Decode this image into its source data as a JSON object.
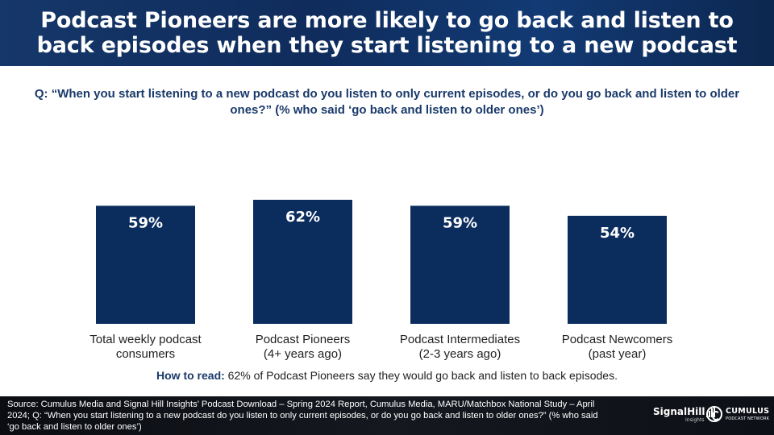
{
  "header": {
    "title": "Podcast Pioneers are more likely to go back and listen to back episodes when they start listening to a new podcast"
  },
  "question": "Q: “When you start listening to a new podcast do you listen to only current episodes, or do you go back and listen to older ones?” (% who said ‘go back and listen to older ones’)",
  "chart_data": {
    "type": "bar",
    "categories": [
      [
        "Total weekly podcast",
        "consumers"
      ],
      [
        "Podcast Pioneers",
        "(4+ years ago)"
      ],
      [
        "Podcast Intermediates",
        "(2-3 years ago)"
      ],
      [
        "Podcast Newcomers",
        "(past year)"
      ]
    ],
    "values": [
      59,
      62,
      59,
      54
    ],
    "value_labels": [
      "59%",
      "62%",
      "59%",
      "54%"
    ],
    "title": "",
    "xlabel": "",
    "ylabel": "",
    "ylim": [
      0,
      100
    ],
    "grid": false,
    "bar_color": "#0b2d5e"
  },
  "how_to_read": {
    "label": "How to read:",
    "text": " 62% of Podcast Pioneers say they would go back and listen to back episodes."
  },
  "footer": {
    "source": "Source: Cumulus Media and Signal Hill Insights’ Podcast Download – Spring 2024 Report, Cumulus Media, MARU/Matchbox National Study – April 2024; Q: “When you start listening to a new podcast do you listen to only current episodes, or do you go back and listen to older ones?” (% who said ‘go back and listen to older ones’)",
    "logo_signalhill": "SignalHill",
    "logo_signalhill_sub": "Insights",
    "logo_cumulus": "CUMULUS",
    "logo_cumulus_sub": "PODCAST NETWORK"
  },
  "colors": {
    "header_bg": "#0f2c5c",
    "accent": "#1a3a6b",
    "footer_bg": "#101319"
  }
}
